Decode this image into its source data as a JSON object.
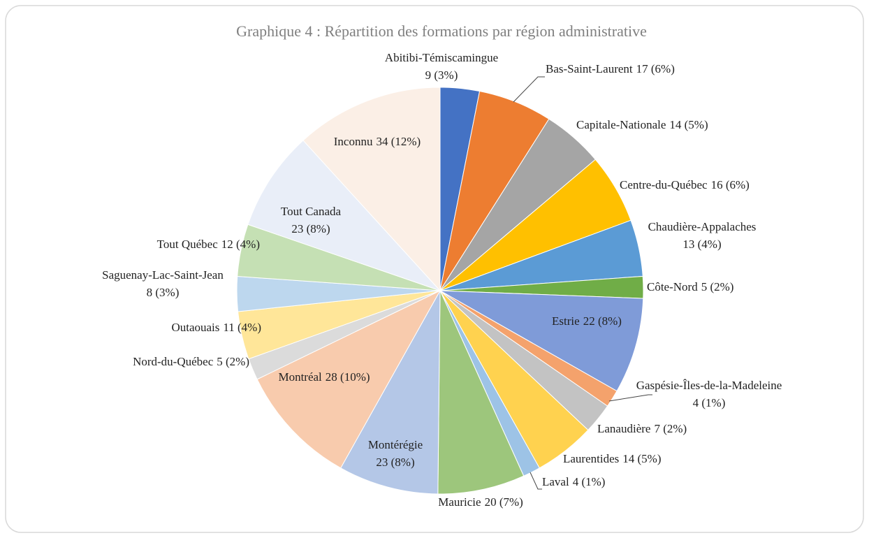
{
  "chart_data": {
    "type": "pie",
    "title": "Graphique 4 : Répartition des formations par région administrative",
    "categories": [
      "Abitibi-Témiscamingue",
      "Bas-Saint-Laurent",
      "Capitale-Nationale",
      "Centre-du-Québec",
      "Chaudière-Appalaches",
      "Côte-Nord",
      "Estrie",
      "Gaspésie-Îles-de-la-Madeleine",
      "Lanaudière",
      "Laurentides",
      "Laval",
      "Mauricie",
      "Montérégie",
      "Montréal",
      "Nord-du-Québec",
      "Outaouais",
      "Saguenay-Lac-Saint-Jean",
      "Tout Québec",
      "Tout Canada",
      "Inconnu"
    ],
    "values": [
      9,
      17,
      14,
      16,
      13,
      5,
      22,
      4,
      7,
      14,
      4,
      20,
      23,
      28,
      5,
      11,
      8,
      12,
      23,
      34
    ],
    "value_labels": [
      "9 (3%)",
      "17 (6%)",
      "14 (5%)",
      "16 (6%)",
      "13 (4%)",
      "5 (2%)",
      "22 (8%)",
      "4 (1%)",
      "7 (2%)",
      "14 (5%)",
      "4 (1%)",
      "20 (7%)",
      "23 (8%)",
      "28 (10%)",
      "5 (2%)",
      "11 (4%)",
      "8 (3%)",
      "12 (4%)",
      "23 (8%)",
      "34 (12%)"
    ],
    "colors": [
      "#4472c4",
      "#ed7d31",
      "#a5a5a5",
      "#ffc000",
      "#5b9bd5",
      "#70ad47",
      "#7f9bd8",
      "#f4a26c",
      "#c3c3c3",
      "#ffd24f",
      "#9dc3e6",
      "#9dc67c",
      "#b4c7e7",
      "#f8cbad",
      "#dbdbdb",
      "#ffe699",
      "#bdd7ee",
      "#c5e0b4",
      "#e9eef8",
      "#fbefe6"
    ]
  }
}
